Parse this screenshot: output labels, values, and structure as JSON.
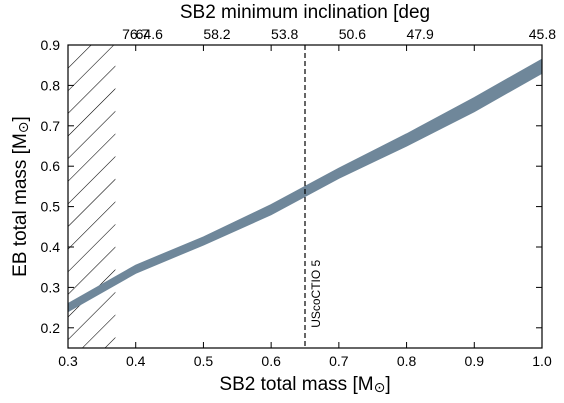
{
  "chart_data": {
    "type": "area",
    "x_axis": {
      "label_main": "SB2 total mass [M",
      "label_unit": "⊙",
      "label_close": "]",
      "range": [
        0.3,
        1.0
      ],
      "ticks": [
        0.3,
        0.4,
        0.5,
        0.6,
        0.7,
        0.8,
        0.9,
        1.0
      ],
      "tick_labels": [
        "0.3",
        "0.4",
        "0.5",
        "0.6",
        "0.7",
        "0.8",
        "0.9",
        "1.0"
      ]
    },
    "x_axis_top": {
      "label": "SB2 minimum inclination [deg",
      "ticks": [
        0.4,
        0.5,
        0.6,
        0.7,
        0.8,
        0.9,
        1.0
      ],
      "tick_labels": [
        "76.7",
        "64.6",
        "58.2",
        "53.8",
        "50.6",
        "47.9",
        "45.8"
      ],
      "label_offsets": [
        0,
        -0.08,
        -0.08,
        -0.08,
        -0.08,
        -0.08,
        0
      ]
    },
    "y_axis": {
      "label_main": "EB total mass [M",
      "label_unit": "⊙",
      "label_close": "]",
      "range": [
        0.15,
        0.9
      ],
      "ticks": [
        0.2,
        0.3,
        0.4,
        0.5,
        0.6,
        0.7,
        0.8,
        0.9
      ],
      "tick_labels": [
        "0.2",
        "0.3",
        "0.4",
        "0.5",
        "0.6",
        "0.7",
        "0.8",
        "0.9"
      ]
    },
    "band": {
      "color": "#6f879a",
      "x": [
        0.3,
        0.4,
        0.5,
        0.6,
        0.7,
        0.8,
        0.9,
        1.0
      ],
      "y_low": [
        0.24,
        0.335,
        0.405,
        0.48,
        0.57,
        0.65,
        0.735,
        0.83
      ],
      "y_high": [
        0.26,
        0.355,
        0.425,
        0.505,
        0.595,
        0.68,
        0.77,
        0.865
      ]
    },
    "hatched_region": {
      "x": [
        0.3,
        0.37
      ]
    },
    "vline": {
      "x": 0.65,
      "style": "dashed",
      "label": "UScoCTIO 5"
    }
  }
}
